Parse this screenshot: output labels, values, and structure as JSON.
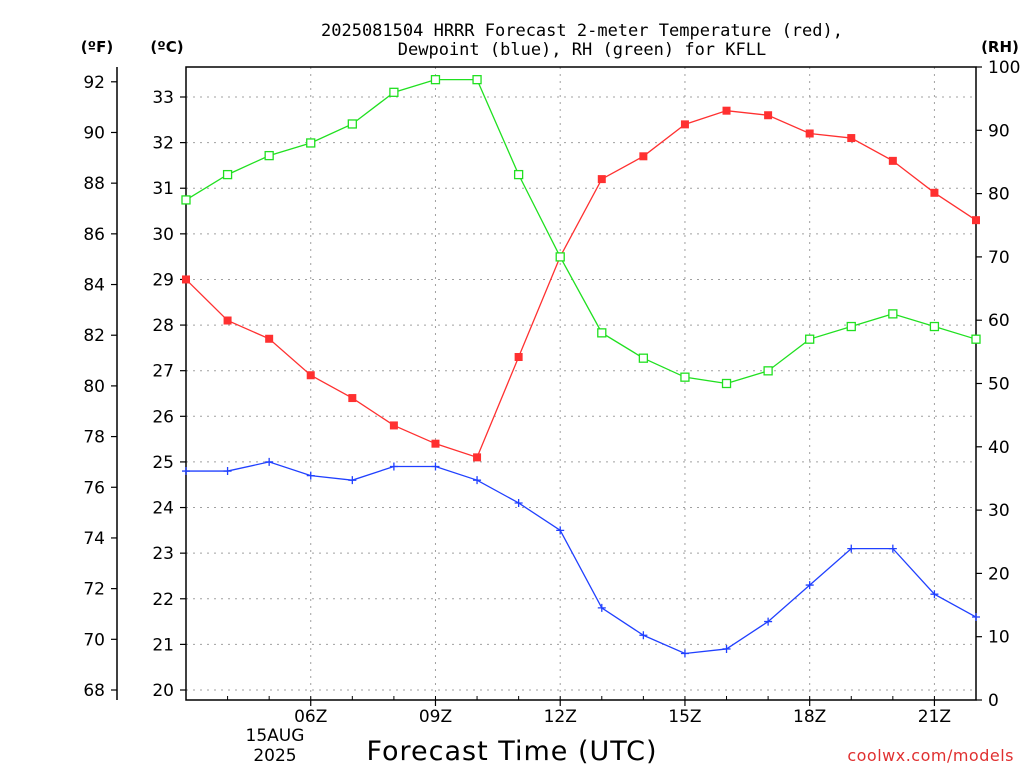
{
  "chart_data": {
    "type": "line",
    "title_line1": "2025081504 HRRR Forecast 2-meter Temperature (red),",
    "title_line2": "Dewpoint (blue), RH (green) for KFLL",
    "left_unit_f": "(ºF)",
    "left_unit_c": "(ºC)",
    "right_unit": "(RH)",
    "xlabel": "Forecast Time (UTC)",
    "date_label_line1": "15AUG",
    "date_label_line2": "2025",
    "credit": "coolwx.com/models",
    "x_hours": [
      3,
      4,
      5,
      6,
      7,
      8,
      9,
      10,
      11,
      12,
      13,
      14,
      15,
      16,
      17,
      18,
      19,
      20,
      21,
      22
    ],
    "x_ticks": [
      {
        "hour": 6,
        "label": "06Z"
      },
      {
        "hour": 9,
        "label": "09Z"
      },
      {
        "hour": 12,
        "label": "12Z"
      },
      {
        "hour": 15,
        "label": "15Z"
      },
      {
        "hour": 18,
        "label": "18Z"
      },
      {
        "hour": 21,
        "label": "21Z"
      }
    ],
    "xlim": [
      3,
      22
    ],
    "fahrenheit_ticks": [
      68,
      70,
      72,
      74,
      76,
      78,
      80,
      82,
      84,
      86,
      88,
      90,
      92
    ],
    "celsius_ticks": [
      20,
      21,
      22,
      23,
      24,
      25,
      26,
      27,
      28,
      29,
      30,
      31,
      32,
      33
    ],
    "rh_ticks": [
      0,
      10,
      20,
      30,
      40,
      50,
      60,
      70,
      80,
      90,
      100
    ],
    "celsius_range": [
      20,
      33
    ],
    "rh_range": [
      0,
      100
    ],
    "series": [
      {
        "name": "2-meter Temperature",
        "units": "C",
        "color": "#ff3030",
        "marker": "filled-square",
        "values": [
          29.0,
          28.1,
          27.7,
          26.9,
          26.4,
          25.8,
          25.4,
          25.1,
          27.3,
          29.5,
          31.2,
          31.7,
          32.4,
          32.7,
          32.6,
          32.2,
          32.1,
          31.6,
          30.9,
          30.3
        ]
      },
      {
        "name": "Dewpoint",
        "units": "C",
        "color": "#2040ff",
        "marker": "plus",
        "values": [
          24.8,
          24.8,
          25.0,
          24.7,
          24.6,
          24.9,
          24.9,
          24.6,
          24.1,
          23.5,
          21.8,
          21.2,
          20.8,
          20.9,
          21.5,
          22.3,
          23.1,
          23.1,
          22.1,
          21.6
        ]
      },
      {
        "name": "RH",
        "units": "%",
        "color": "#20e020",
        "marker": "open-square",
        "values": [
          79,
          83,
          86,
          88,
          91,
          96,
          98,
          98,
          83,
          70,
          58,
          54,
          51,
          50,
          52,
          57,
          59,
          61,
          59,
          57
        ]
      }
    ],
    "grid": true
  }
}
